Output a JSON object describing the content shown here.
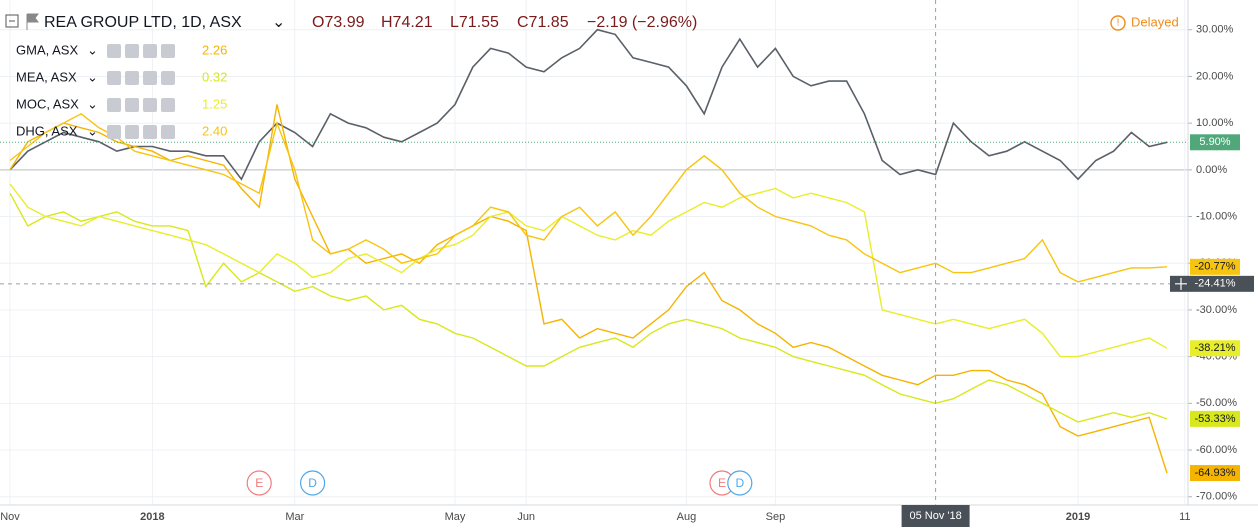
{
  "chart_data": {
    "type": "line",
    "title": "REA GROUP LTD, 1D, ASX",
    "ohlc": [
      "O73.99",
      "H74.21",
      "L71.55",
      "C71.85"
    ],
    "change": "−2.19 (−2.96%)",
    "status": "Delayed",
    "categories": [
      "Nov",
      null,
      null,
      null,
      null,
      null,
      null,
      null,
      "2018",
      null,
      null,
      null,
      null,
      null,
      null,
      null,
      "Mar",
      null,
      null,
      null,
      null,
      null,
      null,
      null,
      null,
      "May",
      null,
      null,
      null,
      "Jun",
      null,
      null,
      null,
      null,
      null,
      null,
      null,
      null,
      "Aug",
      null,
      null,
      null,
      null,
      "Sep",
      null,
      null,
      null,
      null,
      null,
      null,
      null,
      null,
      "05 Nov '18",
      null,
      null,
      null,
      null,
      null,
      null,
      null,
      "2019",
      null,
      null,
      null,
      null,
      null,
      "11"
    ],
    "series": [
      {
        "color": "#50a87a",
        "last_label": "5.90%",
        "values": [
          0,
          4,
          6,
          8,
          7,
          6,
          4,
          5,
          5,
          4,
          4,
          3,
          3,
          -2,
          6,
          10,
          8,
          5,
          12,
          10,
          9,
          7,
          6,
          8,
          10,
          14,
          22,
          26,
          25,
          22,
          21,
          24,
          26,
          30,
          29,
          24,
          23,
          22,
          18,
          12,
          22,
          28,
          22,
          26,
          20,
          18,
          19,
          19,
          12,
          2,
          -1,
          0,
          -1,
          10,
          6,
          3,
          4,
          6,
          4,
          2,
          -2,
          2,
          4,
          8,
          5,
          5.9,
          null
        ]
      },
      {
        "name": "GMA, ASX",
        "price": "2.26",
        "color": "#f5b400",
        "last_label": "-64.93%",
        "values": [
          0,
          6,
          8,
          10,
          9,
          8,
          6,
          5,
          4,
          2,
          3,
          2,
          1,
          -4,
          -8,
          14,
          -2,
          -10,
          -18,
          -17,
          -20,
          -19,
          -18,
          -20,
          -16,
          -14,
          -12,
          -10,
          -11,
          -13,
          -33,
          -32,
          -36,
          -34,
          -35,
          -36,
          -33,
          -30,
          -25,
          -22,
          -28,
          -30,
          -33,
          -35,
          -38,
          -37,
          -38,
          -40,
          -42,
          -44,
          -45,
          -46,
          -44,
          -44,
          -43,
          -43,
          -45,
          -46,
          -48,
          -55,
          -57,
          -56,
          -55,
          -54,
          -53,
          -64.93,
          null
        ]
      },
      {
        "name": "MEA, ASX",
        "price": "0.32",
        "color": "#d8e81c",
        "last_label": "-53.33%",
        "values": [
          -5,
          -12,
          -10,
          -9,
          -11,
          -10,
          -9,
          -11,
          -12,
          -12,
          -13,
          -25,
          -20,
          -24,
          -22,
          -24,
          -26,
          -25,
          -27,
          -28,
          -27,
          -30,
          -29,
          -32,
          -33,
          -35,
          -36,
          -38,
          -40,
          -42,
          -42,
          -40,
          -38,
          -37,
          -36,
          -38,
          -35,
          -33,
          -32,
          -33,
          -34,
          -36,
          -37,
          -38,
          -40,
          -41,
          -42,
          -43,
          -44,
          -46,
          -48,
          -49,
          -50,
          -49,
          -47,
          -45,
          -46,
          -48,
          -50,
          -52,
          -54,
          -53,
          -52,
          -53,
          -52,
          -53.33,
          null
        ]
      },
      {
        "name": "MOC, ASX",
        "price": "1.25",
        "color": "#e8ee2a",
        "last_label": "-38.21%",
        "values": [
          -3,
          -8,
          -10,
          -11,
          -12,
          -10,
          -11,
          -12,
          -13,
          -14,
          -15,
          -16,
          -18,
          -20,
          -22,
          -18,
          -20,
          -23,
          -22,
          -19,
          -18,
          -20,
          -22,
          -19,
          -17,
          -16,
          -14,
          -10,
          -9,
          -12,
          -13,
          -10,
          -12,
          -14,
          -15,
          -13,
          -14,
          -11,
          -9,
          -7,
          -8,
          -6,
          -5,
          -4,
          -6,
          -5,
          -6,
          -7,
          -9,
          -30,
          -31,
          -32,
          -33,
          -32,
          -33,
          -34,
          -33,
          -32,
          -35,
          -40,
          -40,
          -39,
          -38,
          -37,
          -36,
          -38.21,
          null
        ]
      },
      {
        "name": "DHG, ASX",
        "price": "2.40",
        "color": "#f7c410",
        "last_label": "-20.77%",
        "values": [
          2,
          5,
          8,
          10,
          12,
          9,
          7,
          4,
          3,
          2,
          1,
          0,
          -1,
          -3,
          -5,
          10,
          0,
          -15,
          -18,
          -17,
          -15,
          -17,
          -20,
          -19,
          -18,
          -14,
          -12,
          -8,
          -9,
          -14,
          -15,
          -10,
          -8,
          -12,
          -9,
          -14,
          -10,
          -5,
          0,
          3,
          0,
          -5,
          -8,
          -10,
          -11,
          -12,
          -14,
          -15,
          -18,
          -20,
          -22,
          -21,
          -20,
          -22,
          -22,
          -21,
          -20,
          -19,
          -15,
          -22,
          -24,
          -23,
          -22,
          -21,
          -21,
          -20.77,
          null
        ]
      }
    ],
    "ylim": [
      -70.7,
      35.3
    ],
    "yticks": [
      {
        "value": 30,
        "label": "30.00%"
      },
      {
        "value": 20,
        "label": "20.00%"
      },
      {
        "value": 10,
        "label": "10.00%"
      },
      {
        "value": 0,
        "label": "0.00%"
      },
      {
        "value": -10,
        "label": "-10.00%"
      },
      {
        "value": -20,
        "label": "-20.00%"
      },
      {
        "value": -30,
        "label": "-30.00%"
      },
      {
        "value": -40,
        "label": "-40.00%"
      },
      {
        "value": -50,
        "label": "-50.00%"
      },
      {
        "value": -60,
        "label": "-60.00%"
      },
      {
        "value": -70,
        "label": "-70.00%"
      }
    ],
    "grid": true,
    "crosshair": {
      "category": 52,
      "y": {
        "value": -24.41,
        "label": "-24.41%"
      }
    },
    "events": [
      {
        "label": "E",
        "category": 14,
        "color": "#f07b7b"
      },
      {
        "label": "D",
        "category": 17,
        "color": "#4fa8e8"
      },
      {
        "label": "E",
        "category": 40,
        "color": "#f07b7b"
      },
      {
        "label": "D",
        "category": 41,
        "color": "#4fa8e8"
      }
    ]
  }
}
